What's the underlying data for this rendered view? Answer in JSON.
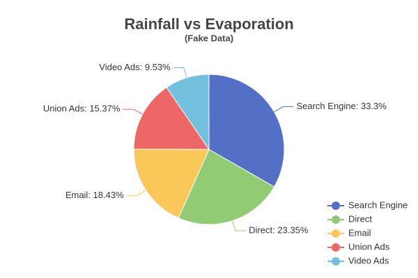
{
  "chart_data": {
    "type": "pie",
    "title": "Rainfall vs Evaporation",
    "subtitle": "(Fake Data)",
    "categories": [
      "Search Engine",
      "Direct",
      "Email",
      "Union Ads",
      "Video Ads"
    ],
    "values": [
      33.3,
      23.35,
      18.43,
      15.37,
      9.53
    ],
    "value_labels": [
      "Search Engine: 33.3%",
      "Direct: 23.35%",
      "Email: 18.43%",
      "Union Ads: 15.37%",
      "Video Ads: 9.53%"
    ],
    "colors": [
      "#5470c6",
      "#91cc75",
      "#fac858",
      "#ee6666",
      "#73c0de"
    ],
    "legend": "bottom-right"
  }
}
